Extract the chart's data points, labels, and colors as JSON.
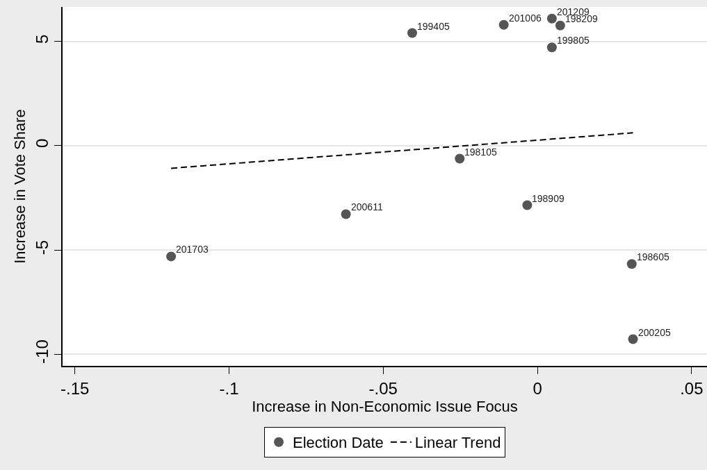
{
  "chart_data": {
    "type": "scatter",
    "xlabel": "Increase in Non-Economic Issue Focus",
    "ylabel": "Increase in Vote Share",
    "xlim": [
      -0.154,
      0.055
    ],
    "ylim": [
      -10.56,
      6.66
    ],
    "xticks": [
      {
        "value": -0.15,
        "label": "-.15"
      },
      {
        "value": -0.1,
        "label": "-.1"
      },
      {
        "value": -0.05,
        "label": "-.05"
      },
      0,
      {
        "value": 0.05,
        "label": ".05"
      }
    ],
    "yticks": [
      -10,
      -5,
      0,
      5
    ],
    "grid": "y",
    "legend": "bottom",
    "series": [
      {
        "name": "Election Date",
        "marker": "circle",
        "color": "#555555",
        "x": [
          -0.1188,
          -0.0621,
          -0.0406,
          -0.0252,
          -0.0109,
          -0.0033,
          0.0047,
          0.0074,
          0.0047,
          0.0306,
          0.031
        ],
        "values": [
          -5.31,
          -3.28,
          5.41,
          -0.62,
          5.8,
          -2.85,
          6.1,
          5.77,
          4.72,
          -5.67,
          -9.28
        ]
      },
      {
        "name": "Linear Trend",
        "type": "line",
        "marker": "none",
        "line_style": "dashed",
        "color": "#000000",
        "x": [
          -0.1188,
          0.031
        ],
        "values": [
          -1.08,
          0.62
        ]
      }
    ],
    "annotations": [
      {
        "text": "201703",
        "x": -0.1188,
        "y": -5.31
      },
      {
        "text": "200611",
        "x": -0.0621,
        "y": -3.28
      },
      {
        "text": "199405",
        "x": -0.0406,
        "y": 5.41
      },
      {
        "text": "198105",
        "x": -0.0252,
        "y": -0.62
      },
      {
        "text": "201006",
        "x": -0.0109,
        "y": 5.8
      },
      {
        "text": "198909",
        "x": -0.0033,
        "y": -2.85
      },
      {
        "text": "201209",
        "x": 0.0047,
        "y": 6.1
      },
      {
        "text": "198209",
        "x": 0.0074,
        "y": 5.77
      },
      {
        "text": "199805",
        "x": 0.0047,
        "y": 4.72
      },
      {
        "text": "198605",
        "x": 0.0306,
        "y": -5.67
      },
      {
        "text": "200205",
        "x": 0.031,
        "y": -9.28
      }
    ]
  }
}
